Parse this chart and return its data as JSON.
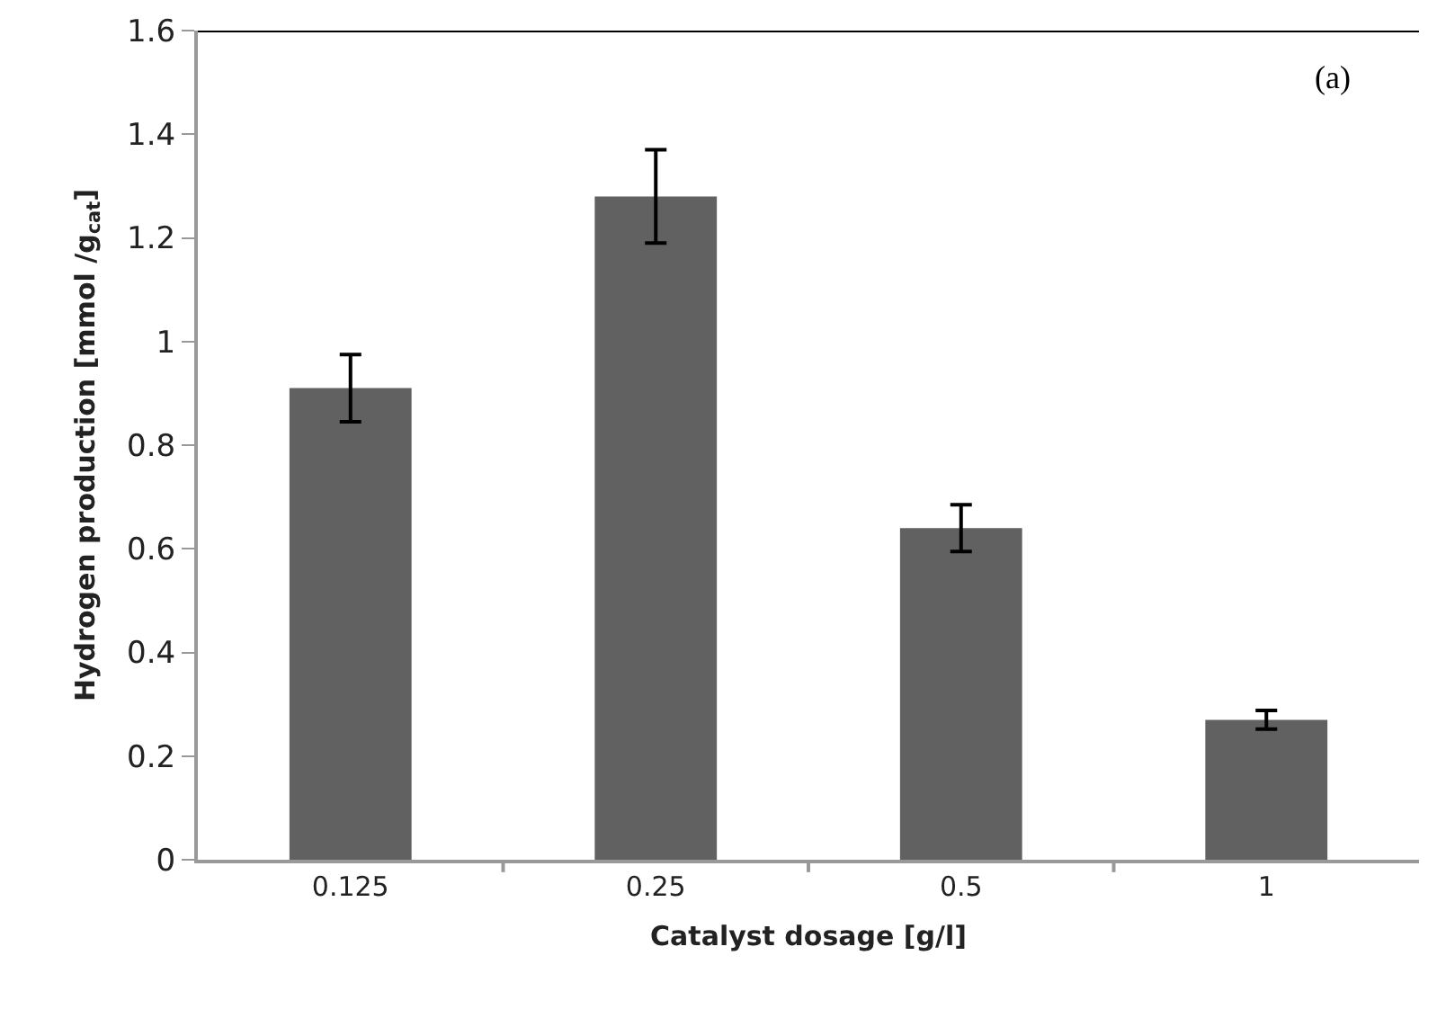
{
  "chart_data": {
    "type": "bar",
    "xlabel": "Catalyst dosage [g/l]",
    "ylabel": "Hydrogen production [mmol /g$_{cat}$]",
    "categories": [
      "0.125",
      "0.25",
      "0.5",
      "1"
    ],
    "values": [
      0.91,
      1.28,
      0.64,
      0.27
    ],
    "errors": [
      0.065,
      0.09,
      0.045,
      0.018
    ],
    "color": "#616161",
    "ylim": [
      0,
      1.6
    ],
    "yticks": [
      0,
      0.2,
      0.4,
      0.6,
      0.8,
      1,
      1.2,
      1.4,
      1.6
    ],
    "grid": false,
    "annotations": [
      "(a)"
    ]
  }
}
